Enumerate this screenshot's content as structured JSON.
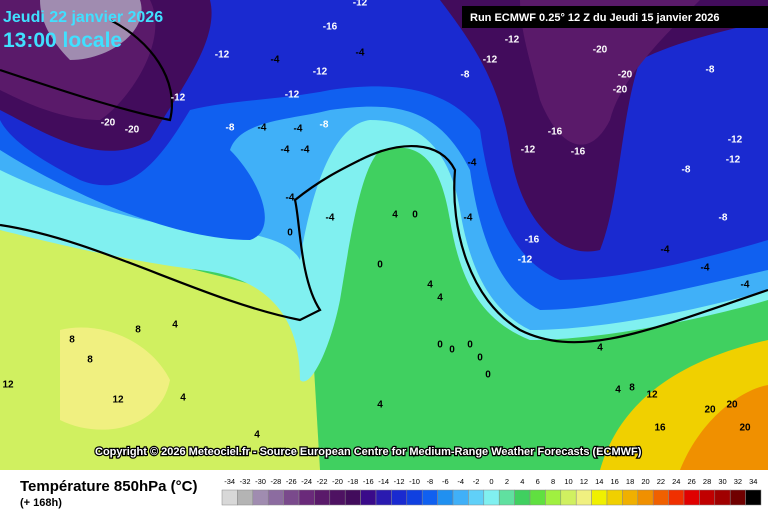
{
  "header": {
    "date": "Jeudi 22 janvier 2026",
    "time": "13:00 locale",
    "run": "Run ECMWF 0.25° 12 Z du Jeudi 15 janvier 2026"
  },
  "copyright": "Copyright © 2026 Meteociel.fr - Source European Centre for Medium-Range Weather Forecasts (ECMWF)",
  "legend": {
    "title": "Température 850hPa (°C)",
    "lead": "(+ 168h)",
    "scale": [
      -34,
      -32,
      -30,
      -28,
      -26,
      -24,
      -22,
      -20,
      -18,
      -16,
      -14,
      -12,
      -10,
      -8,
      -6,
      -4,
      -2,
      0,
      2,
      4,
      6,
      8,
      10,
      12,
      14,
      16,
      18,
      20,
      22,
      24,
      26,
      28,
      30,
      32,
      34
    ],
    "colors": [
      "#d8d8d8",
      "#b4b4b4",
      "#a08cb0",
      "#8c6ca0",
      "#7a4a8c",
      "#6a2a7a",
      "#5a1a6a",
      "#4e1262",
      "#420c5c",
      "#3a0a8a",
      "#2a1ab0",
      "#1a2ad0",
      "#1040e0",
      "#1060f0",
      "#2090f0",
      "#40b0f8",
      "#60d0f8",
      "#80f0f0",
      "#60e0a0",
      "#40d060",
      "#60e040",
      "#a0f040",
      "#d0f060",
      "#f0f080",
      "#f0f000",
      "#f0d000",
      "#f0b000",
      "#f09000",
      "#f06000",
      "#f03000",
      "#e00000",
      "#c00000",
      "#a00000",
      "#700000",
      "#000000"
    ]
  },
  "map_labels": [
    -16,
    -12,
    -12,
    -20,
    -8,
    -20,
    -20,
    -12,
    -8,
    -16,
    -16,
    -12,
    -12,
    -12,
    -8,
    -8,
    -4,
    -4,
    -4,
    -16,
    -12,
    -12,
    -12,
    -4,
    -4,
    -12,
    -12,
    -20,
    -20,
    -8,
    -4,
    -4,
    -8,
    -4,
    -4,
    -4,
    -4,
    0,
    4,
    0,
    -4,
    -4,
    0,
    4,
    4,
    4,
    8,
    8,
    8,
    12,
    12,
    4,
    4,
    4,
    4,
    4,
    8,
    12,
    16,
    20,
    20,
    20,
    0,
    0,
    0,
    0,
    0
  ]
}
